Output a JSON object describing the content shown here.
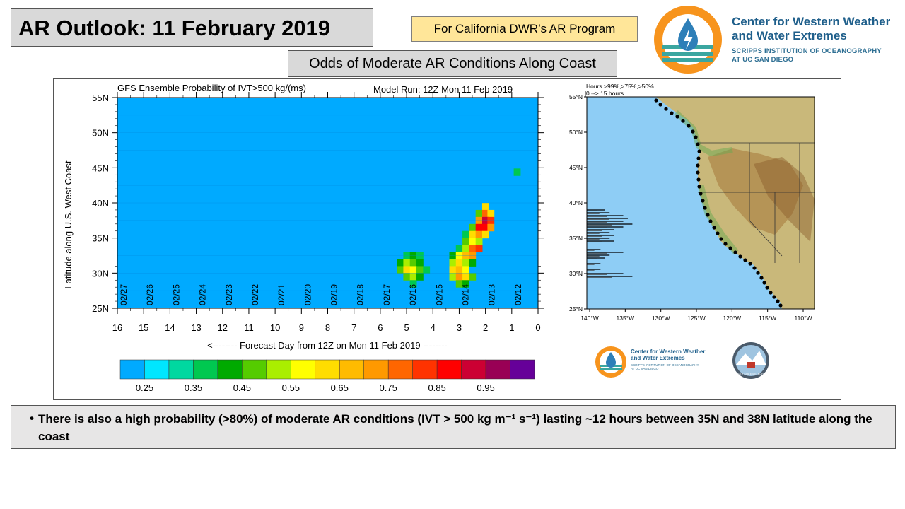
{
  "slide": {
    "title": "AR Outlook: 11 February 2019",
    "program_label": "For California DWR’s AR Program",
    "subtitle": "Odds of Moderate AR Conditions Along Coast",
    "bullet": "There is also a high probability  (>80%) of moderate AR conditions (IVT > 500 kg m⁻¹ s⁻¹) lasting ~12 hours between 35N and 38N latitude along the coast"
  },
  "logo": {
    "line1": "Center for Western Weather",
    "line2": "and Water Extremes",
    "line3": "SCRIPPS INSTITUTION OF OCEANOGRAPHY",
    "line4": "AT UC SAN DIEGO",
    "colors": {
      "orange": "#f7941d",
      "blue": "#2e7fb8",
      "teal": "#3aa6a0"
    }
  },
  "small_logo": {
    "line1": "Center for Western Weather",
    "line2": "and Water Extremes",
    "line3": "SCRIPPS INSTITUTION OF OCEANOGRAPHY",
    "line4": "AT UC SAN DIEGO",
    "plymouth": "PLYMOUTH STATE METEOROLOGY"
  },
  "chart_data": [
    {
      "type": "heatmap",
      "title": "GFS Ensemble Probability of IVT>500 kg/(ms)",
      "subtitle": "Model Run: 12Z Mon 11 Feb 2019",
      "xlabel": "<-------- Forecast Day from 12Z on Mon 11 Feb 2019 --------",
      "ylabel": "Latitude along U.S. West Coast",
      "x_ticks": [
        "16",
        "15",
        "14",
        "13",
        "12",
        "11",
        "10",
        "9",
        "8",
        "7",
        "6",
        "5",
        "4",
        "3",
        "2",
        "1",
        "0"
      ],
      "xlim": [
        16,
        0
      ],
      "y_ticks": [
        "55N",
        "50N",
        "45N",
        "40N",
        "35N",
        "30N",
        "25N"
      ],
      "ylim": [
        25,
        55
      ],
      "date_labels": [
        "02/27",
        "02/26",
        "02/25",
        "02/24",
        "02/23",
        "02/22",
        "02/21",
        "02/20",
        "02/19",
        "02/18",
        "02/17",
        "02/16",
        "02/15",
        "02/14",
        "02/13",
        "02/12"
      ],
      "background_color": "#00aaff",
      "colorbar": {
        "colors": [
          "#00aaff",
          "#00e6ff",
          "#00d8a0",
          "#00c850",
          "#00aa00",
          "#55cc00",
          "#aaee00",
          "#ffff00",
          "#ffdd00",
          "#ffbb00",
          "#ff9900",
          "#ff6600",
          "#ff3300",
          "#ff0000",
          "#cc0033",
          "#990055",
          "#660099"
        ],
        "labels": [
          "0.25",
          "0.35",
          "0.45",
          "0.55",
          "0.65",
          "0.75",
          "0.85",
          "0.95"
        ]
      },
      "cells": [
        {
          "day": 0.8,
          "lat": 44.4,
          "p": 0.35
        },
        {
          "day": 2.0,
          "lat": 39.5,
          "p": 0.6
        },
        {
          "day": 2.25,
          "lat": 38.5,
          "p": 0.45
        },
        {
          "day": 2.0,
          "lat": 38.5,
          "p": 0.75
        },
        {
          "day": 1.8,
          "lat": 38.5,
          "p": 0.6
        },
        {
          "day": 2.25,
          "lat": 37.5,
          "p": 0.7
        },
        {
          "day": 2.0,
          "lat": 37.5,
          "p": 0.9
        },
        {
          "day": 1.8,
          "lat": 37.5,
          "p": 0.8
        },
        {
          "day": 2.5,
          "lat": 36.5,
          "p": 0.45
        },
        {
          "day": 2.25,
          "lat": 36.5,
          "p": 0.85
        },
        {
          "day": 2.0,
          "lat": 36.5,
          "p": 0.85
        },
        {
          "day": 1.8,
          "lat": 36.5,
          "p": 0.7
        },
        {
          "day": 2.75,
          "lat": 35.5,
          "p": 0.35
        },
        {
          "day": 2.5,
          "lat": 35.5,
          "p": 0.6
        },
        {
          "day": 2.25,
          "lat": 35.5,
          "p": 0.7
        },
        {
          "day": 2.0,
          "lat": 35.5,
          "p": 0.6
        },
        {
          "day": 2.75,
          "lat": 34.5,
          "p": 0.45
        },
        {
          "day": 2.5,
          "lat": 34.5,
          "p": 0.55
        },
        {
          "day": 2.25,
          "lat": 34.5,
          "p": 0.5
        },
        {
          "day": 3.0,
          "lat": 33.5,
          "p": 0.35
        },
        {
          "day": 2.75,
          "lat": 33.5,
          "p": 0.5
        },
        {
          "day": 2.5,
          "lat": 33.5,
          "p": 0.75
        },
        {
          "day": 2.25,
          "lat": 33.5,
          "p": 0.8
        },
        {
          "day": 3.25,
          "lat": 32.5,
          "p": 0.4
        },
        {
          "day": 3.0,
          "lat": 32.5,
          "p": 0.55
        },
        {
          "day": 2.75,
          "lat": 32.5,
          "p": 0.65
        },
        {
          "day": 2.5,
          "lat": 32.5,
          "p": 0.7
        },
        {
          "day": 3.25,
          "lat": 31.5,
          "p": 0.5
        },
        {
          "day": 3.0,
          "lat": 31.5,
          "p": 0.6
        },
        {
          "day": 2.75,
          "lat": 31.5,
          "p": 0.5
        },
        {
          "day": 2.5,
          "lat": 31.5,
          "p": 0.4
        },
        {
          "day": 3.25,
          "lat": 30.5,
          "p": 0.6
        },
        {
          "day": 3.0,
          "lat": 30.5,
          "p": 0.65
        },
        {
          "day": 2.75,
          "lat": 30.5,
          "p": 0.55
        },
        {
          "day": 3.25,
          "lat": 29.5,
          "p": 0.5
        },
        {
          "day": 3.0,
          "lat": 29.5,
          "p": 0.7
        },
        {
          "day": 2.75,
          "lat": 29.5,
          "p": 0.6
        },
        {
          "day": 2.5,
          "lat": 29.5,
          "p": 0.45
        },
        {
          "day": 3.0,
          "lat": 28.5,
          "p": 0.45
        },
        {
          "day": 2.75,
          "lat": 28.5,
          "p": 0.4
        },
        {
          "day": 5.0,
          "lat": 32.5,
          "p": 0.35
        },
        {
          "day": 4.75,
          "lat": 32.5,
          "p": 0.4
        },
        {
          "day": 4.5,
          "lat": 32.5,
          "p": 0.35
        },
        {
          "day": 5.25,
          "lat": 31.5,
          "p": 0.4
        },
        {
          "day": 5.0,
          "lat": 31.5,
          "p": 0.5
        },
        {
          "day": 4.75,
          "lat": 31.5,
          "p": 0.45
        },
        {
          "day": 4.5,
          "lat": 31.5,
          "p": 0.4
        },
        {
          "day": 5.25,
          "lat": 30.5,
          "p": 0.45
        },
        {
          "day": 5.0,
          "lat": 30.5,
          "p": 0.6
        },
        {
          "day": 4.75,
          "lat": 30.5,
          "p": 0.55
        },
        {
          "day": 4.5,
          "lat": 30.5,
          "p": 0.45
        },
        {
          "day": 4.25,
          "lat": 30.5,
          "p": 0.35
        },
        {
          "day": 5.0,
          "lat": 29.5,
          "p": 0.45
        },
        {
          "day": 4.75,
          "lat": 29.5,
          "p": 0.5
        },
        {
          "day": 4.5,
          "lat": 29.5,
          "p": 0.4
        },
        {
          "day": 4.75,
          "lat": 28.5,
          "p": 0.35
        }
      ]
    },
    {
      "type": "bar",
      "orientation": "horizontal",
      "legend": "Hours >99%,>75%,>50%",
      "legend_line2": "0 --> 15 hours",
      "x_ticks": [
        "140°W",
        "135°W",
        "130°W",
        "125°W",
        "120°W",
        "115°W",
        "110°W"
      ],
      "y_ticks": [
        "55°N",
        "50°N",
        "45°N",
        "40°N",
        "35°N",
        "30°N",
        "25°N"
      ],
      "ylim": [
        25,
        55
      ],
      "xlim": [
        0,
        15
      ],
      "values": [
        {
          "lat": 39.0,
          "hours": 4
        },
        {
          "lat": 38.6,
          "hours": 5
        },
        {
          "lat": 38.2,
          "hours": 8
        },
        {
          "lat": 37.8,
          "hours": 9
        },
        {
          "lat": 37.4,
          "hours": 8
        },
        {
          "lat": 37.0,
          "hours": 10
        },
        {
          "lat": 36.6,
          "hours": 8
        },
        {
          "lat": 36.2,
          "hours": 6
        },
        {
          "lat": 35.8,
          "hours": 5
        },
        {
          "lat": 35.4,
          "hours": 6
        },
        {
          "lat": 35.0,
          "hours": 5
        },
        {
          "lat": 34.6,
          "hours": 6
        },
        {
          "lat": 33.4,
          "hours": 3
        },
        {
          "lat": 33.0,
          "hours": 8
        },
        {
          "lat": 32.6,
          "hours": 5
        },
        {
          "lat": 32.2,
          "hours": 4
        },
        {
          "lat": 31.4,
          "hours": 3
        },
        {
          "lat": 30.6,
          "hours": 3
        },
        {
          "lat": 30.0,
          "hours": 8
        },
        {
          "lat": 29.6,
          "hours": 10
        }
      ]
    }
  ]
}
